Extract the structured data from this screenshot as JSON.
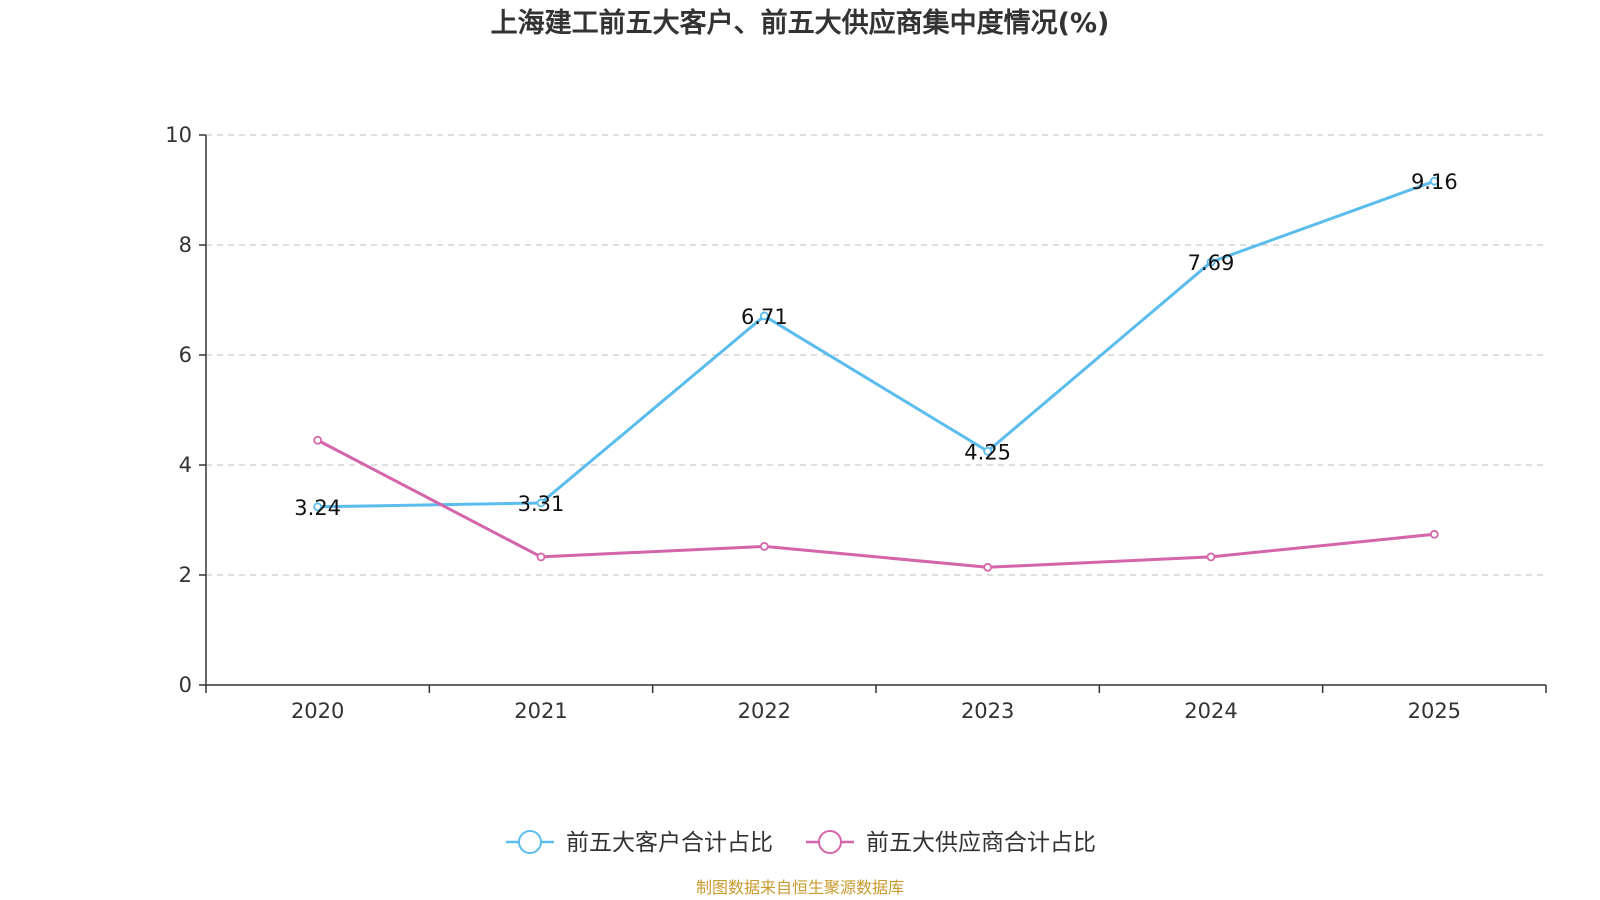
{
  "chart_data": {
    "type": "line",
    "title": "上海建工前五大客户、前五大供应商集中度情况(%)",
    "categories": [
      "2020",
      "2021",
      "2022",
      "2023",
      "2024",
      "2025"
    ],
    "ylim": [
      0,
      10
    ],
    "yticks": [
      "0",
      "2",
      "4",
      "6",
      "8",
      "10"
    ],
    "grid": true,
    "legend_position": "bottom-center",
    "series": [
      {
        "name": "前五大客户合计占比",
        "values": [
          3.24,
          3.31,
          6.71,
          4.25,
          7.69,
          9.16
        ],
        "labels": [
          "3.24",
          "3.31",
          "6.71",
          "4.25",
          "7.69",
          "9.16"
        ],
        "color": "#5bbcee"
      },
      {
        "name": "前五大供应商合计占比",
        "values": [
          4.45,
          2.33,
          2.52,
          2.14,
          2.33,
          2.74
        ],
        "color": "#d465aa"
      }
    ]
  },
  "source": {
    "text": "制图数据来自恒生聚源数据库",
    "color": "#c89a2e"
  },
  "colors": {
    "axis": "#333333",
    "grid": "#cccccc",
    "title": "#333333"
  }
}
